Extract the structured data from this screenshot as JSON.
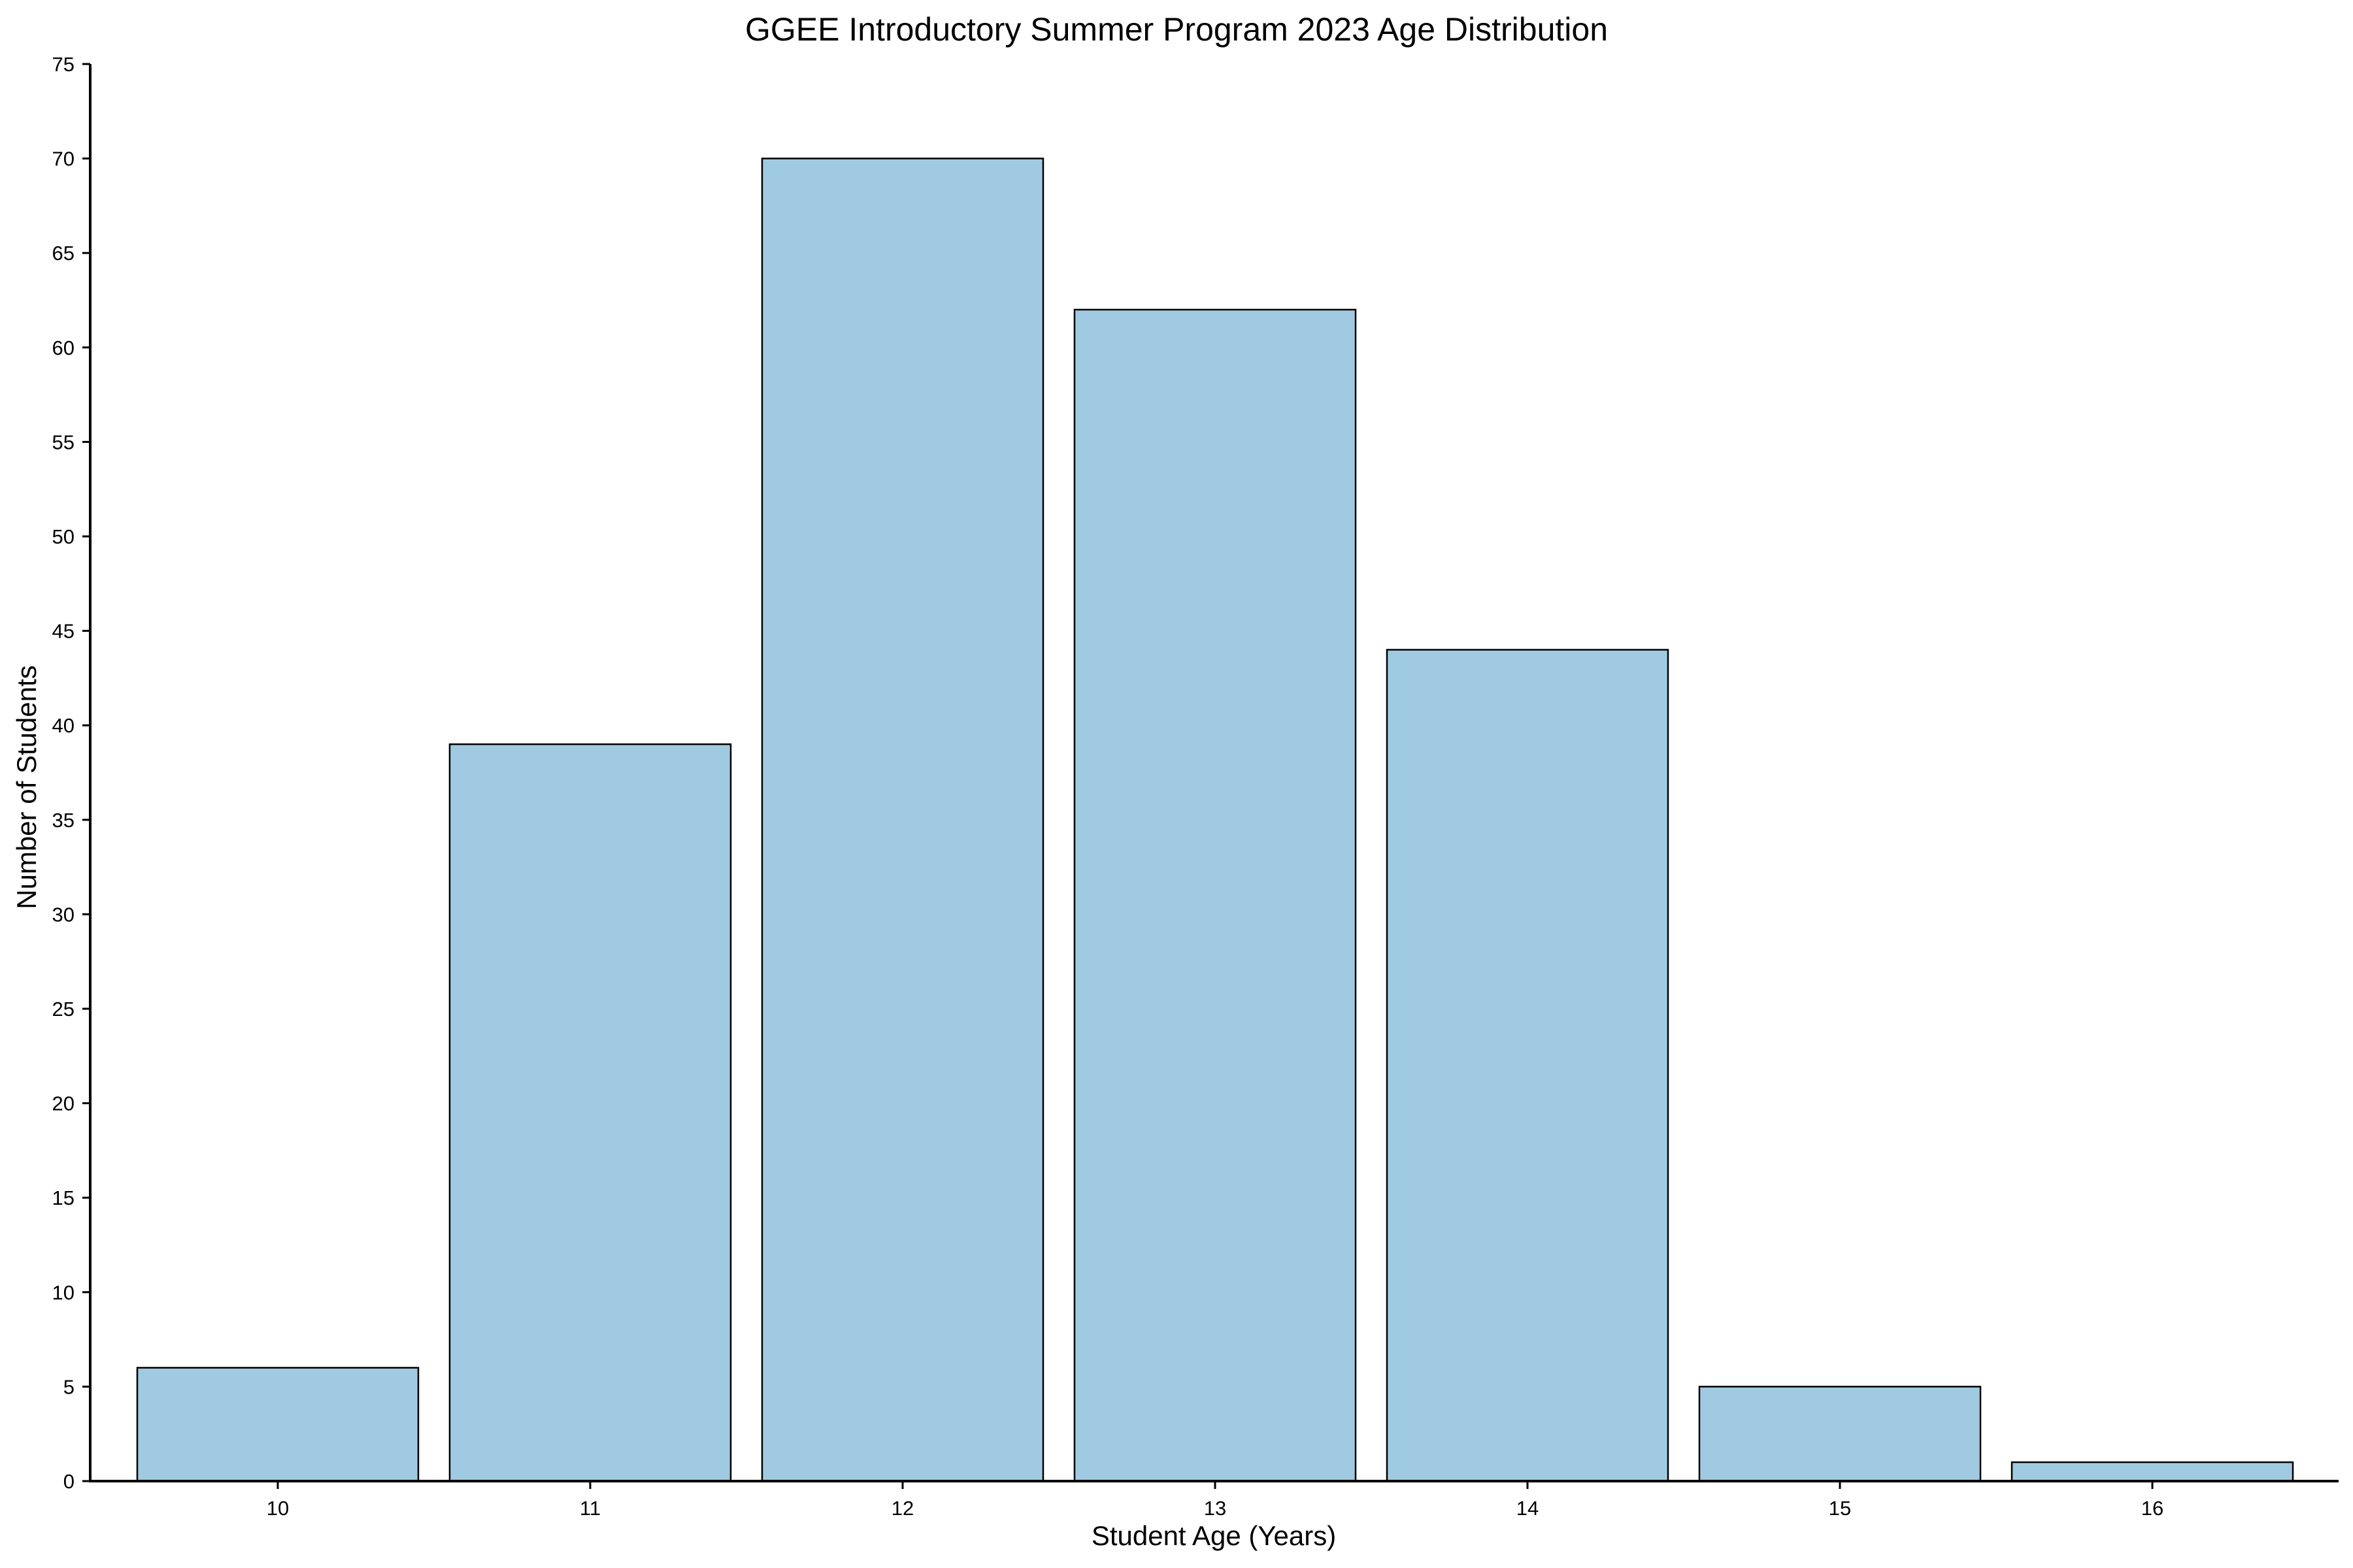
{
  "chart_data": {
    "type": "bar",
    "title": "GGEE Introductory Summer Program 2023 Age Distribution",
    "xlabel": "Student Age (Years)",
    "ylabel": "Number of Students",
    "categories": [
      "10",
      "11",
      "12",
      "13",
      "14",
      "15",
      "16"
    ],
    "values": [
      6,
      39,
      70,
      62,
      44,
      5,
      1
    ],
    "ylim": [
      0,
      75
    ],
    "yticks": [
      0,
      5,
      10,
      15,
      20,
      25,
      30,
      35,
      40,
      45,
      50,
      55,
      60,
      65,
      70,
      75
    ],
    "grid": false,
    "legend": "none",
    "bar_color": "#a0cae1",
    "edge_color": "#000000"
  }
}
